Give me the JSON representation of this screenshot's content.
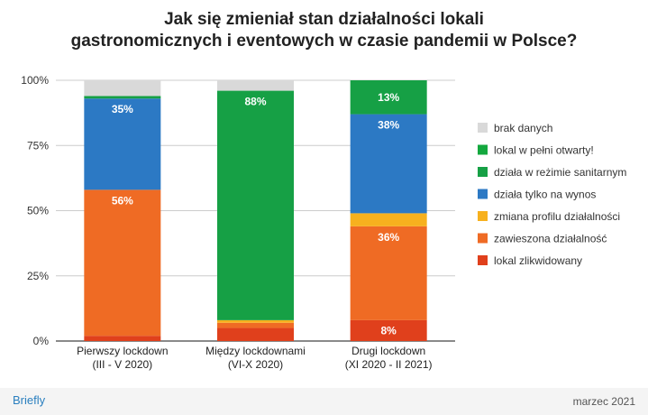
{
  "title_line1": "Jak się zmieniał stan działalności lokali",
  "title_line2": "gastronomicznych i eventowych w czasie pandemii w Polsce?",
  "footer": {
    "brand": "Briefly",
    "date": "marzec 2021"
  },
  "chart_data": {
    "type": "bar",
    "stacked": true,
    "title": "Jak się zmieniał stan działalności lokali gastronomicznych i eventowych w czasie pandemii w Polsce?",
    "categories": [
      [
        "Pierwszy lockdown",
        "(III - V 2020)"
      ],
      [
        "Między lockdownami",
        "(VI-X 2020)"
      ],
      [
        "Drugi lockdown",
        "(XI 2020 - II 2021)"
      ]
    ],
    "ylim": [
      0,
      100
    ],
    "yticks": [
      "0%",
      "25%",
      "50%",
      "75%",
      "100%"
    ],
    "grid": true,
    "legend_position": "right",
    "series": [
      {
        "name": "lokal zlikwidowany",
        "color": "#e0401c",
        "values": [
          2,
          5,
          8
        ],
        "labels": [
          "",
          "",
          "8%"
        ]
      },
      {
        "name": "zawieszona działalność",
        "color": "#ef6b24",
        "values": [
          56,
          2,
          36
        ],
        "labels": [
          "56%",
          "",
          "36%"
        ]
      },
      {
        "name": "zmiana profilu działalności",
        "color": "#f7b11e",
        "values": [
          0,
          1,
          5
        ],
        "labels": [
          "",
          "",
          ""
        ]
      },
      {
        "name": "działa tylko na wynos",
        "color": "#2c79c4",
        "values": [
          35,
          0,
          38
        ],
        "labels": [
          "35%",
          "",
          "38%"
        ]
      },
      {
        "name": "działa w reżimie sanitarnym",
        "color": "#16a045",
        "values": [
          1,
          88,
          13
        ],
        "labels": [
          "",
          "88%",
          "13%"
        ]
      },
      {
        "name": "lokal w pełni otwarty!",
        "color": "#13a83e",
        "values": [
          0,
          0,
          0
        ],
        "labels": [
          "",
          "",
          ""
        ]
      },
      {
        "name": "brak danych",
        "color": "#d9d9d9",
        "values": [
          6,
          4,
          0
        ],
        "labels": [
          "",
          "",
          ""
        ]
      }
    ]
  }
}
